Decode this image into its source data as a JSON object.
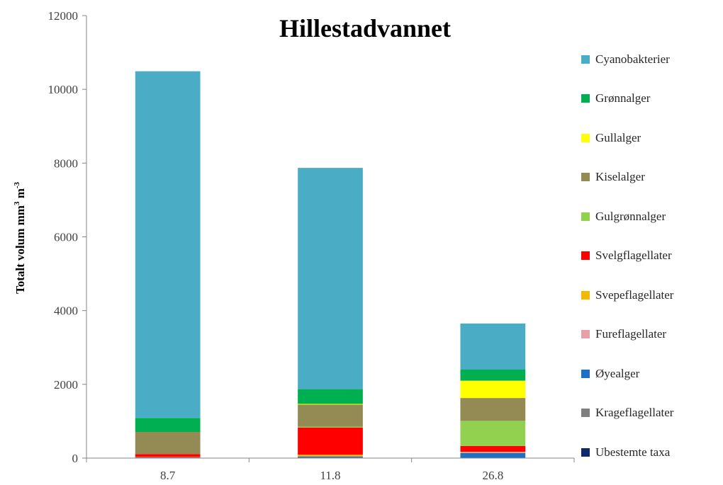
{
  "chart_data": {
    "type": "bar",
    "stacked": true,
    "title": "Hillestadvannet",
    "ylabel": "Totalt volum mm",
    "ylabel_sup1": "3",
    "ylabel_mid": " m",
    "ylabel_sup2": "-3",
    "xlabel": "",
    "categories": [
      "8.7",
      "11.8",
      "26.8"
    ],
    "ylim": [
      0,
      12000
    ],
    "yticks": [
      0,
      2000,
      4000,
      6000,
      8000,
      10000,
      12000
    ],
    "grid": false,
    "legend_position": "right",
    "series": [
      {
        "name": "Ubestemte taxa",
        "color": "#0f2a6b",
        "values": [
          10,
          15,
          10
        ]
      },
      {
        "name": "Krageflagellater",
        "color": "#7f7f7f",
        "values": [
          0,
          0,
          0
        ]
      },
      {
        "name": "Øyealger",
        "color": "#1f6fc4",
        "values": [
          10,
          30,
          130
        ]
      },
      {
        "name": "Fureflagellater",
        "color": "#e6a1a8",
        "values": [
          0,
          0,
          20
        ]
      },
      {
        "name": "Svepeflagellater",
        "color": "#f5b800",
        "values": [
          10,
          45,
          10
        ]
      },
      {
        "name": "Svelgflagellater",
        "color": "#ff0000",
        "values": [
          80,
          740,
          160
        ]
      },
      {
        "name": "Gulgrønnalger",
        "color": "#92d050",
        "values": [
          0,
          20,
          680
        ]
      },
      {
        "name": "Kiselalger",
        "color": "#948a54",
        "values": [
          600,
          600,
          620
        ]
      },
      {
        "name": "Gullalger",
        "color": "#ffff00",
        "values": [
          0,
          20,
          470
        ]
      },
      {
        "name": "Grønnalger",
        "color": "#00b050",
        "values": [
          380,
          400,
          300
        ]
      },
      {
        "name": "Cyanobakterier",
        "color": "#4bacc6",
        "values": [
          9400,
          6000,
          1250
        ]
      }
    ]
  }
}
